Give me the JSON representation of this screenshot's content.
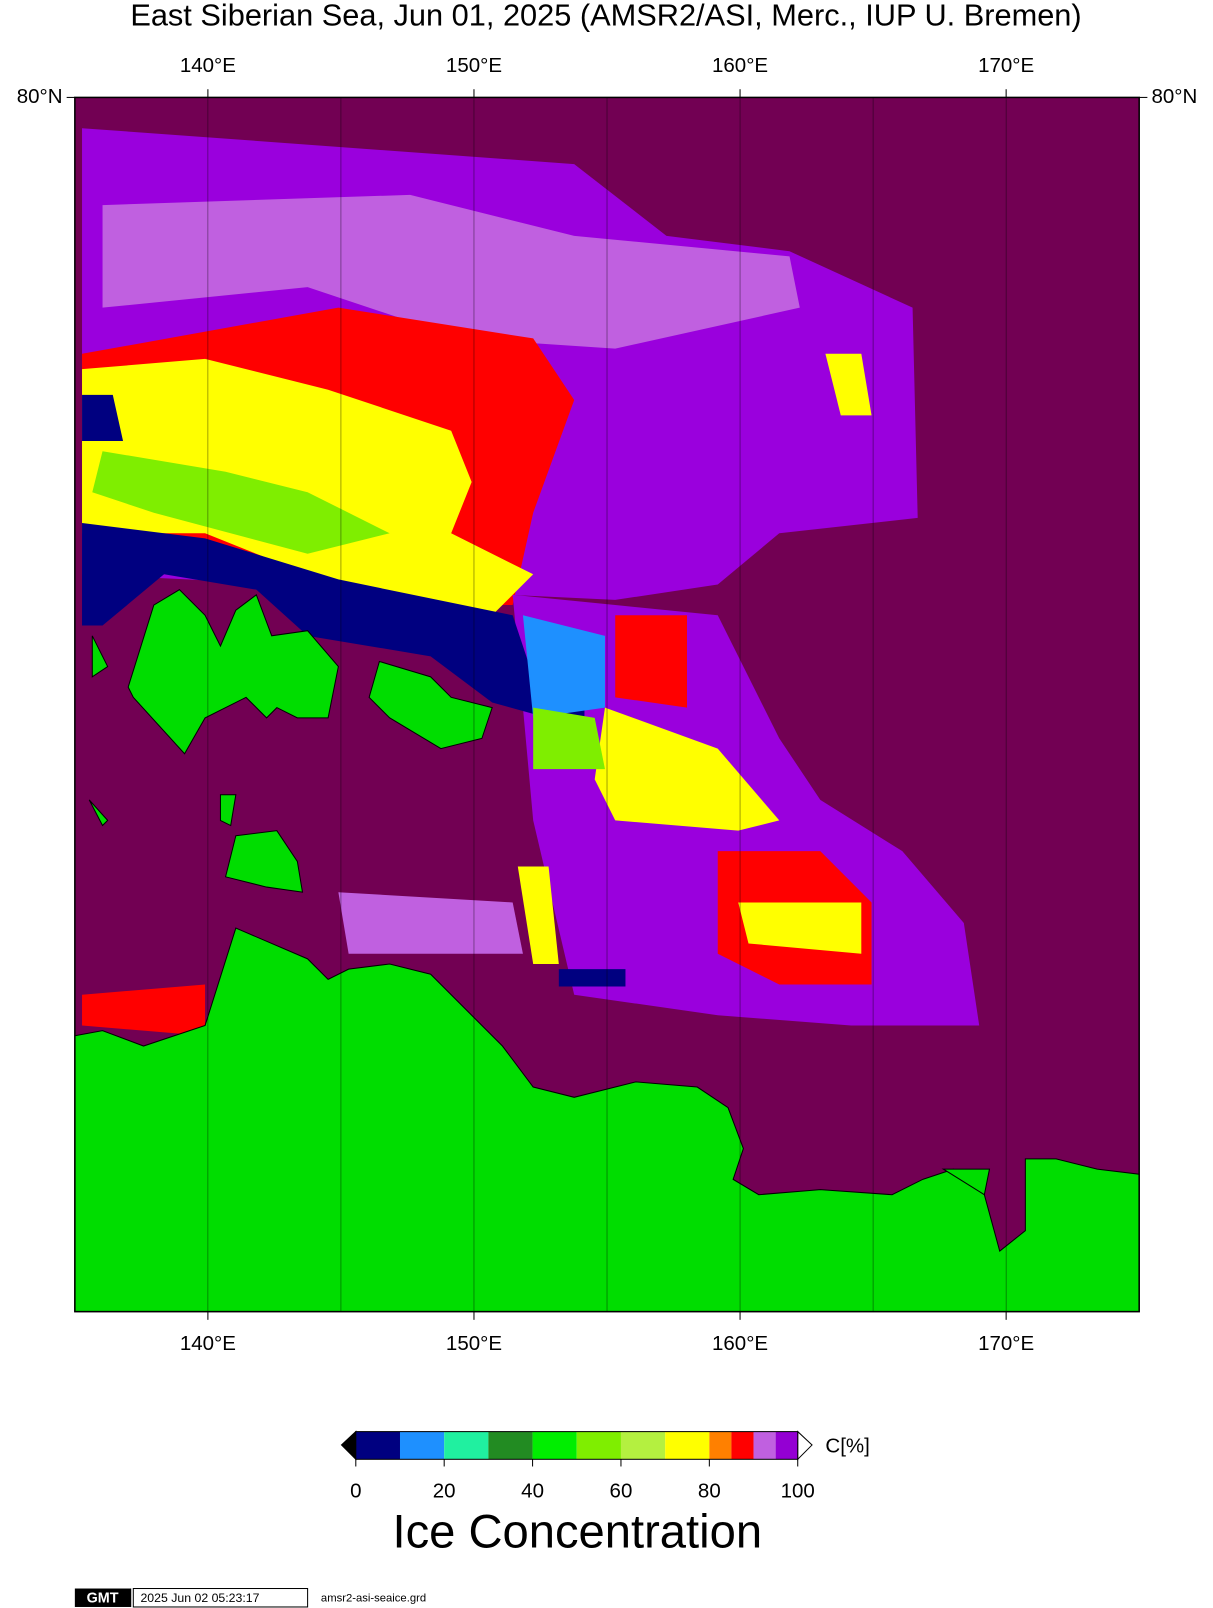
{
  "title": "East Siberian Sea, Jun 01, 2025 (AMSR2/ASI, Merc., IUP U. Bremen)",
  "map": {
    "xlim": [
      135,
      175
    ],
    "grid_interval": 5,
    "lon_ticks": [
      {
        "value": 140,
        "label": "140°E"
      },
      {
        "value": 150,
        "label": "150°E"
      },
      {
        "value": 160,
        "label": "160°E"
      },
      {
        "value": 170,
        "label": "170°E"
      }
    ],
    "lat_ticks": [
      {
        "value": 80,
        "label": "80°N"
      }
    ]
  },
  "colorbar": {
    "bounds": [
      0,
      10,
      20,
      30,
      40,
      50,
      60,
      70,
      80,
      85,
      90,
      95,
      100
    ],
    "colors": [
      "#000080",
      "#1e90ff",
      "#20f0a0",
      "#228b22",
      "#00ee00",
      "#7fee00",
      "#b4f040",
      "#ffff00",
      "#ff8000",
      "#ff0000",
      "#c060e0",
      "#9400d3"
    ],
    "ticks": [
      0,
      20,
      40,
      60,
      80,
      100
    ],
    "unit": "C[%]",
    "label": "Ice Concentration"
  },
  "footer": {
    "logo": "GMT",
    "timestamp": "2025 Jun 02 05:23:17",
    "file": "amsr2-asi-seaice.grd"
  }
}
